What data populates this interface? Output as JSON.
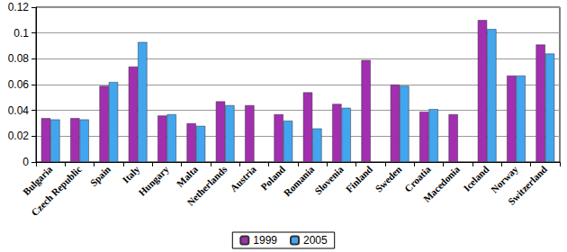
{
  "chart_data": {
    "type": "bar",
    "categories": [
      "Bulgaria",
      "Czech Republic",
      "Spain",
      "Italy",
      "Hungary",
      "Malta",
      "Netherlands",
      "Austria",
      "Poland",
      "Romania",
      "Slovenia",
      "Finland",
      "Sweden",
      "Croatia",
      "Macedonia",
      "Iceland",
      "Norway",
      "Switzerland"
    ],
    "series": [
      {
        "name": "1999",
        "color": "#a12fb0",
        "values": [
          0.034,
          0.034,
          0.059,
          0.074,
          0.036,
          0.03,
          0.047,
          0.044,
          0.037,
          0.054,
          0.045,
          0.079,
          0.06,
          0.039,
          0.037,
          0.11,
          0.067,
          0.091
        ]
      },
      {
        "name": "2005",
        "color": "#42a5f0",
        "values": [
          0.033,
          0.033,
          0.062,
          0.093,
          0.037,
          0.028,
          0.044,
          null,
          0.032,
          0.026,
          0.042,
          null,
          0.059,
          0.041,
          null,
          0.103,
          0.067,
          0.084
        ]
      }
    ],
    "ylim": [
      0,
      0.12
    ],
    "yticks": [
      0,
      0.02,
      0.04,
      0.06,
      0.08,
      0.1,
      0.12
    ],
    "grid": true,
    "legend": "bottom"
  }
}
